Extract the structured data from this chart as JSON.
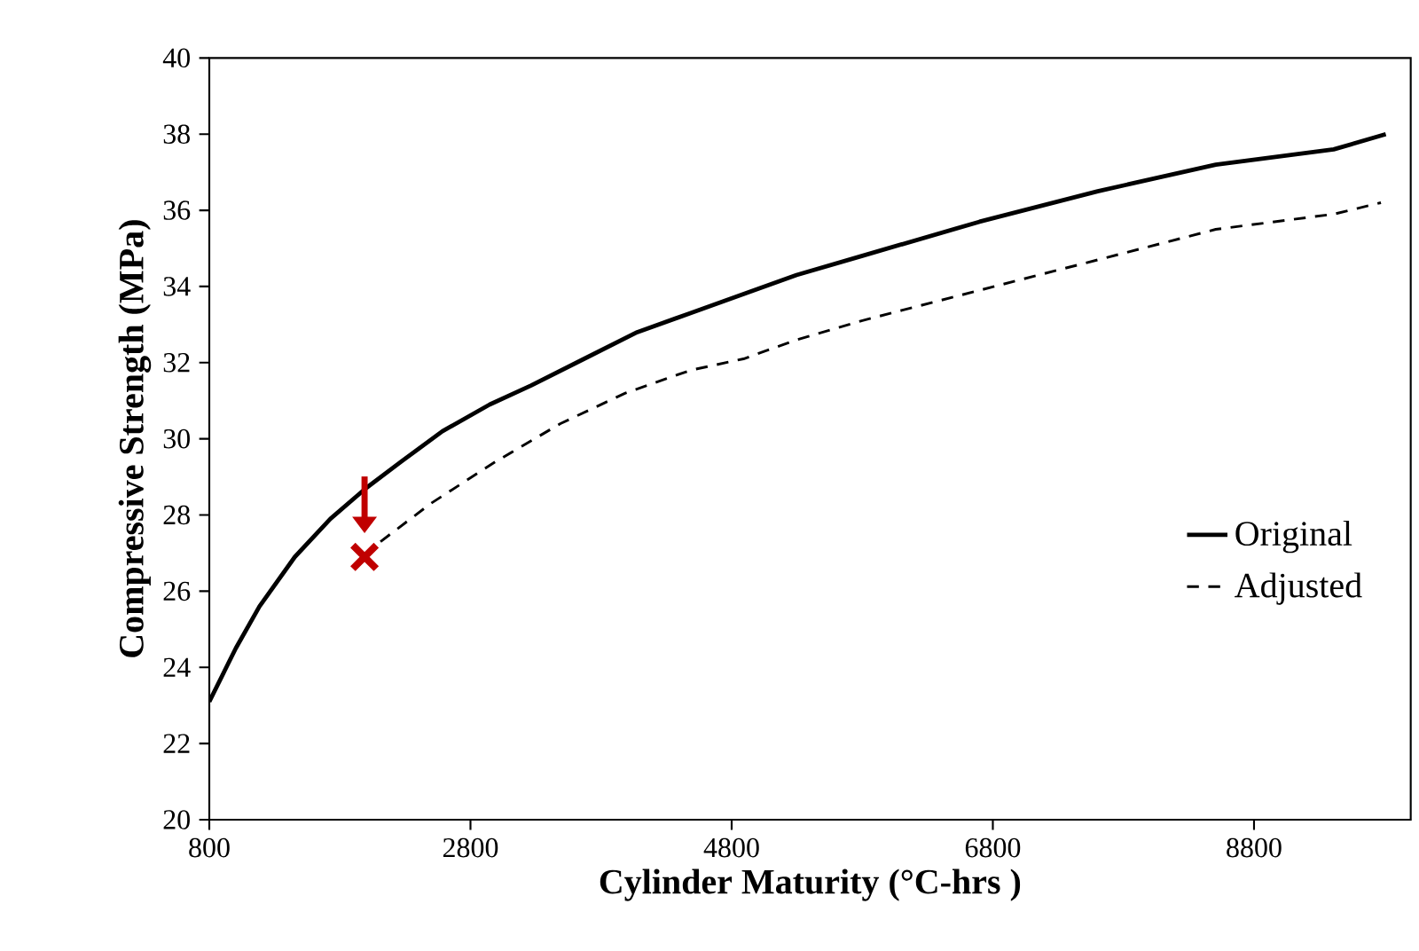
{
  "chart_data": {
    "type": "line",
    "xlabel": "Cylinder Maturity (°C-hrs )",
    "ylabel": "Compressive Strength (MPa)",
    "xlim": [
      800,
      10000
    ],
    "xticks": [
      800,
      2800,
      4800,
      6800,
      8800
    ],
    "ylim": [
      20,
      40
    ],
    "yticks": [
      20,
      22,
      24,
      26,
      28,
      30,
      32,
      34,
      36,
      38,
      40
    ],
    "grid": false,
    "legend": "right",
    "series": [
      {
        "name": "Original",
        "color": "#000000",
        "line_style": "solid",
        "x": [
          800,
          1003,
          1184,
          1455,
          1727,
          1998,
          2269,
          2585,
          2947,
          3263,
          3670,
          4077,
          4484,
          4890,
          5297,
          5795,
          6698,
          7603,
          8507,
          9410,
          9809
        ],
        "values": [
          23.1,
          24.5,
          25.6,
          26.9,
          27.9,
          28.7,
          29.4,
          30.2,
          30.9,
          31.4,
          32.1,
          32.8,
          33.3,
          33.8,
          34.3,
          34.8,
          35.7,
          36.5,
          37.2,
          37.6,
          38.0
        ]
      },
      {
        "name": "Adjusted",
        "color": "#000000",
        "line_style": "dashed",
        "x": [
          2111,
          2495,
          2992,
          3489,
          3986,
          4484,
          4891,
          5297,
          5795,
          6698,
          7603,
          8507,
          9410,
          9772
        ],
        "values": [
          27.3,
          28.3,
          29.4,
          30.4,
          31.2,
          31.8,
          32.1,
          32.6,
          33.1,
          33.9,
          34.7,
          35.5,
          35.9,
          36.2
        ]
      },
      {
        "type": "scatter",
        "color": "#c00000",
        "marker": "cross",
        "x": [
          1989
        ],
        "values": [
          26.9
        ]
      }
    ]
  }
}
